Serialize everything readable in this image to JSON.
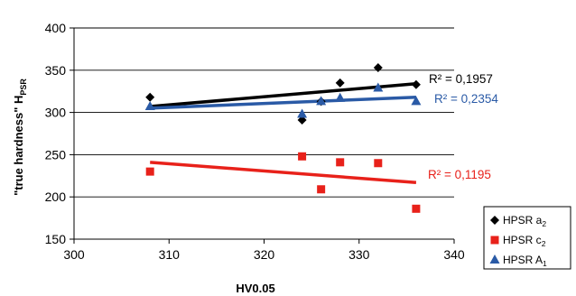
{
  "chart_data": {
    "type": "scatter",
    "xlabel": "HV0.05",
    "ylabel": {
      "main": "\"true hardness\" H",
      "sub": "PSR"
    },
    "xlim": [
      300,
      340
    ],
    "ylim": [
      150,
      400
    ],
    "xticks": [
      300,
      310,
      320,
      330,
      340
    ],
    "yticks": [
      150,
      200,
      250,
      300,
      350,
      400
    ],
    "grid": "horizontal",
    "legend_position": "right-bottom",
    "series": [
      {
        "name_main": "HPSR a",
        "name_sub": "2",
        "color": "#000000",
        "marker": "diamond",
        "x": [
          308,
          324,
          326,
          328,
          332,
          336
        ],
        "y": [
          318,
          291,
          313,
          335,
          353,
          333
        ],
        "trendline": {
          "x": [
            308,
            336
          ],
          "y": [
            307,
            334
          ]
        },
        "r2_label": "R² = 0,1957"
      },
      {
        "name_main": "HPSR c",
        "name_sub": "2",
        "color": "#e8211a",
        "marker": "square",
        "x": [
          308,
          324,
          326,
          328,
          332,
          336
        ],
        "y": [
          230,
          248,
          209,
          241,
          240,
          186
        ],
        "trendline": {
          "x": [
            308,
            336
          ],
          "y": [
            241,
            217
          ]
        },
        "r2_label": "R² = 0,1195"
      },
      {
        "name_main": "HPSR A",
        "name_sub": "1",
        "color": "#2a5aa6",
        "marker": "triangle",
        "x": [
          308,
          324,
          326,
          328,
          332,
          336
        ],
        "y": [
          307,
          298,
          313,
          317,
          329,
          313
        ],
        "trendline": {
          "x": [
            308,
            336
          ],
          "y": [
            305,
            318
          ]
        },
        "r2_label": "R² = 0,2354"
      }
    ]
  }
}
